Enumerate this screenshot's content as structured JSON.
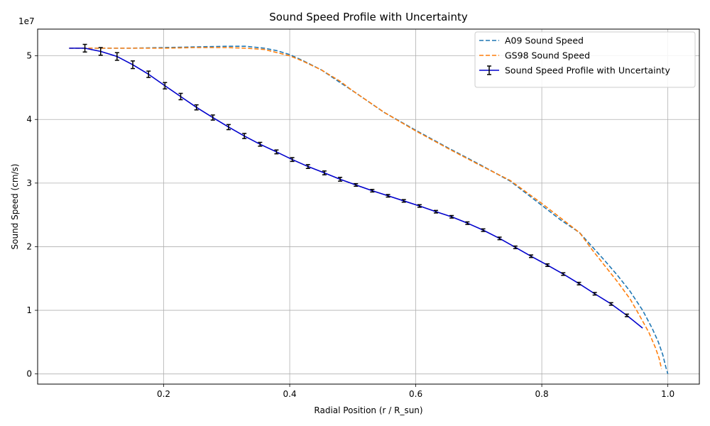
{
  "chart_data": {
    "type": "line",
    "title": "Sound Speed Profile with Uncertainty",
    "xlabel": "Radial Position (r / R_sun)",
    "ylabel": "Sound Speed (cm/s)",
    "y_offset_label": "1e7",
    "xlim": [
      0.0,
      1.05
    ],
    "ylim": [
      -0.16,
      5.42
    ],
    "y_unit_scale": 10000000,
    "x_ticks": [
      0.2,
      0.4,
      0.6,
      0.8,
      1.0
    ],
    "x_tick_labels": [
      "0.2",
      "0.4",
      "0.6",
      "0.8",
      "1.0"
    ],
    "y_ticks": [
      0,
      1,
      2,
      3,
      4,
      5
    ],
    "y_tick_labels": [
      "0",
      "1",
      "2",
      "3",
      "4",
      "5"
    ],
    "grid": true,
    "legend_position": "top-right",
    "series": [
      {
        "name": "A09 Sound Speed",
        "color": "#1f77b4",
        "style": "dashed",
        "x": [
          0.05,
          0.1,
          0.15,
          0.2,
          0.25,
          0.3,
          0.33,
          0.36,
          0.38,
          0.4,
          0.42,
          0.45,
          0.48,
          0.5,
          0.55,
          0.6,
          0.65,
          0.7,
          0.75,
          0.8,
          0.83,
          0.86,
          0.88,
          0.9,
          0.92,
          0.94,
          0.96,
          0.975,
          0.985,
          0.992,
          0.997,
          1.0
        ],
        "y": [
          5.12,
          5.12,
          5.12,
          5.13,
          5.14,
          5.15,
          5.15,
          5.12,
          5.08,
          5.02,
          4.93,
          4.78,
          4.58,
          4.45,
          4.11,
          3.83,
          3.56,
          3.3,
          3.03,
          2.65,
          2.42,
          2.22,
          2.0,
          1.78,
          1.55,
          1.3,
          1.0,
          0.72,
          0.5,
          0.3,
          0.1,
          0.0
        ]
      },
      {
        "name": "GS98 Sound Speed",
        "color": "#ff7f0e",
        "style": "dashed",
        "x": [
          0.05,
          0.1,
          0.15,
          0.2,
          0.25,
          0.3,
          0.33,
          0.36,
          0.38,
          0.4,
          0.42,
          0.45,
          0.48,
          0.5,
          0.55,
          0.6,
          0.65,
          0.7,
          0.75,
          0.8,
          0.83,
          0.86,
          0.88,
          0.9,
          0.92,
          0.94,
          0.955,
          0.97,
          0.98,
          0.986,
          0.99
        ],
        "y": [
          5.12,
          5.12,
          5.12,
          5.12,
          5.13,
          5.13,
          5.12,
          5.1,
          5.05,
          5.0,
          4.92,
          4.78,
          4.6,
          4.45,
          4.11,
          3.82,
          3.55,
          3.29,
          3.04,
          2.68,
          2.45,
          2.22,
          1.95,
          1.7,
          1.45,
          1.18,
          0.92,
          0.65,
          0.42,
          0.25,
          0.08
        ]
      },
      {
        "name": "Sound Speed Profile with Uncertainty",
        "color": "#0000cc",
        "style": "solid",
        "error_bars": true,
        "x": [
          0.05,
          0.075,
          0.1,
          0.126,
          0.151,
          0.176,
          0.202,
          0.227,
          0.252,
          0.278,
          0.303,
          0.328,
          0.353,
          0.379,
          0.404,
          0.429,
          0.455,
          0.48,
          0.505,
          0.531,
          0.556,
          0.581,
          0.606,
          0.632,
          0.657,
          0.682,
          0.707,
          0.733,
          0.758,
          0.783,
          0.809,
          0.834,
          0.859,
          0.884,
          0.91,
          0.935,
          0.96
        ],
        "y": [
          5.12,
          5.12,
          5.07,
          4.99,
          4.86,
          4.71,
          4.53,
          4.36,
          4.19,
          4.03,
          3.88,
          3.74,
          3.61,
          3.49,
          3.37,
          3.26,
          3.16,
          3.06,
          2.97,
          2.88,
          2.8,
          2.72,
          2.64,
          2.55,
          2.47,
          2.37,
          2.26,
          2.13,
          1.99,
          1.85,
          1.71,
          1.57,
          1.42,
          1.26,
          1.1,
          0.92,
          0.72
        ],
        "errors": [
          0.0,
          0.06,
          0.06,
          0.06,
          0.06,
          0.05,
          0.05,
          0.05,
          0.04,
          0.04,
          0.04,
          0.04,
          0.03,
          0.03,
          0.03,
          0.03,
          0.03,
          0.03,
          0.02,
          0.02,
          0.02,
          0.02,
          0.02,
          0.02,
          0.02,
          0.02,
          0.02,
          0.02,
          0.02,
          0.02,
          0.02,
          0.02,
          0.02,
          0.02,
          0.02,
          0.02,
          0.0
        ]
      }
    ]
  }
}
